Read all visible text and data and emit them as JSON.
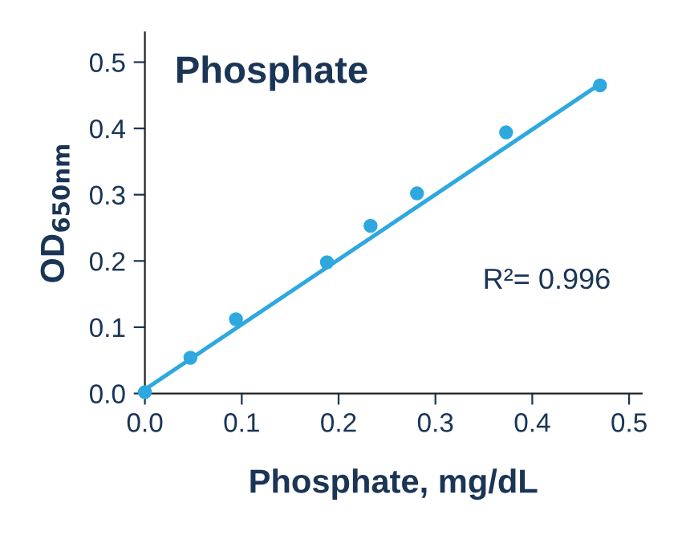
{
  "chart_data": {
    "type": "scatter",
    "title": "Phosphate",
    "xlabel": "Phosphate, mg/dL",
    "ylabel": "OD$_{650nm}$",
    "x": [
      0.0,
      0.047,
      0.094,
      0.188,
      0.233,
      0.281,
      0.373,
      0.47
    ],
    "series": [
      {
        "color": "#2ea8df",
        "marker": "circle",
        "values": [
          0.002,
          0.054,
          0.112,
          0.198,
          0.253,
          0.302,
          0.394,
          0.465
        ]
      },
      {
        "type": "line",
        "color": "#2ea8df",
        "marker": "none",
        "x": [
          0.0,
          0.469
        ],
        "values": [
          0.006,
          0.466
        ]
      }
    ],
    "line_style": "solid",
    "xlim": [
      0,
      0.513
    ],
    "ylim": [
      0,
      0.545
    ],
    "xticks": [
      {
        "value": 0,
        "label": "0.0"
      },
      0.1,
      0.2,
      0.3,
      0.4,
      0.5
    ],
    "yticks": [
      {
        "value": 0,
        "label": "0.0"
      },
      0.1,
      0.2,
      0.3,
      0.4,
      0.5
    ],
    "grid": false,
    "legend": false,
    "annotations": [
      "R²= 0.996"
    ]
  }
}
